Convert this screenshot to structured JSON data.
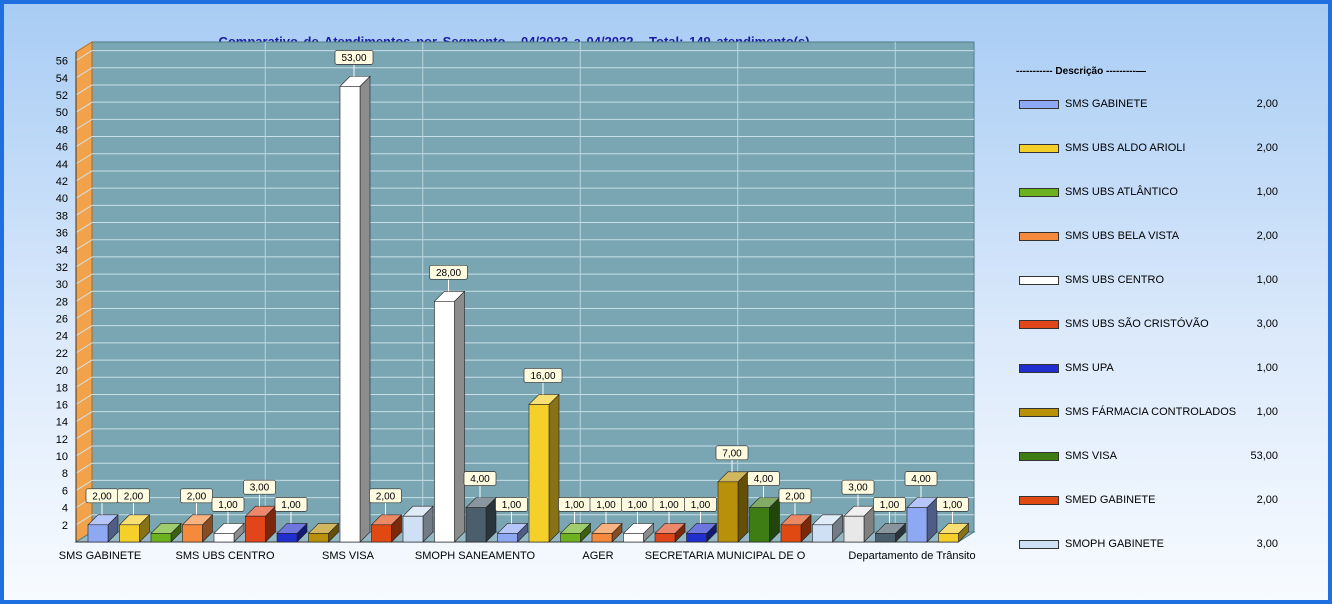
{
  "title": "Comparativo de Atendimentos por Segmento - 04/2022 a 04/2022 - Total: 149 atendimento(s)",
  "legend": {
    "header": "----------- Descrição ---------—"
  },
  "chart_data": {
    "type": "bar",
    "title": "Comparativo de Atendimentos por Segmento - 04/2022 a 04/2022 - Total: 149 atendimento(s)",
    "ylim": [
      0,
      57
    ],
    "yticks": [
      2,
      4,
      6,
      8,
      10,
      12,
      14,
      16,
      18,
      20,
      22,
      24,
      26,
      28,
      30,
      32,
      34,
      36,
      38,
      40,
      42,
      44,
      46,
      48,
      50,
      52,
      54,
      56
    ],
    "grid": true,
    "legend_position": "right",
    "x_axis_labels": [
      "SMS GABINETE",
      "SMS UBS CENTRO",
      "SMS VISA",
      "SMOPH SANEAMENTO",
      "AGER",
      "SECRETARIA MUNICIPAL DE O",
      "Departamento de Trânsito"
    ],
    "series": [
      {
        "name": "SMS GABINETE",
        "value": 2,
        "label": "2,00",
        "color": "#8ea8f4"
      },
      {
        "name": "SMS UBS ALDO ARIOLI",
        "value": 2,
        "label": "2,00",
        "color": "#f5cf2a"
      },
      {
        "name": "SMS UBS ATLÂNTICO",
        "value": 1,
        "label": "1,00",
        "color": "#6cb21e"
      },
      {
        "name": "SMS UBS BELA VISTA",
        "value": 2,
        "label": "2,00",
        "color": "#f58a3c"
      },
      {
        "name": "SMS UBS CENTRO",
        "value": 1,
        "label": "1,00",
        "color": "#ffffff"
      },
      {
        "name": "SMS UBS SÃO CRISTÓVÃO",
        "value": 3,
        "label": "3,00",
        "color": "#e0461a"
      },
      {
        "name": "SMS UPA",
        "value": 1,
        "label": "1,00",
        "color": "#1f2ecc"
      },
      {
        "name": "SMS FÁRMACIA CONTROLADOS",
        "value": 1,
        "label": "1,00",
        "color": "#b8900a"
      },
      {
        "name": "SMS VISA",
        "value": 53,
        "label": "53,00",
        "color": "#3e7d14"
      },
      {
        "name": "SMED GABINETE",
        "value": 2,
        "label": "2,00",
        "color": "#e04a12"
      },
      {
        "name": "SMOPH GABINETE",
        "value": 3,
        "label": "3,00",
        "color": "#cfe0f4"
      }
    ],
    "bars": [
      {
        "value": 2,
        "label": "2,00",
        "color": "#8ea8f4"
      },
      {
        "value": 2,
        "label": "2,00",
        "color": "#f5cf2a"
      },
      {
        "value": 1,
        "label": "",
        "color": "#6cb21e"
      },
      {
        "value": 2,
        "label": "2,00",
        "color": "#f58a3c"
      },
      {
        "value": 1,
        "label": "1,00",
        "color": "#ffffff"
      },
      {
        "value": 3,
        "label": "3,00",
        "color": "#e0461a"
      },
      {
        "value": 1,
        "label": "1,00",
        "color": "#1f2ecc"
      },
      {
        "value": 1,
        "label": "",
        "color": "#b8900a"
      },
      {
        "value": 53,
        "label": "53,00",
        "color": "#ffffff"
      },
      {
        "value": 2,
        "label": "2,00",
        "color": "#e04a12"
      },
      {
        "value": 3,
        "label": "",
        "color": "#cfe0f4"
      },
      {
        "value": 28,
        "label": "28,00",
        "color": "#ffffff"
      },
      {
        "value": 4,
        "label": "4,00",
        "color": "#4a5e6c"
      },
      {
        "value": 1,
        "label": "1,00",
        "color": "#8ea8f4"
      },
      {
        "value": 16,
        "label": "16,00",
        "color": "#f5cf2a"
      },
      {
        "value": 1,
        "label": "1,00",
        "color": "#6cb21e"
      },
      {
        "value": 1,
        "label": "1,00",
        "color": "#f58a3c"
      },
      {
        "value": 1,
        "label": "1,00",
        "color": "#ffffff"
      },
      {
        "value": 1,
        "label": "1,00",
        "color": "#e0461a"
      },
      {
        "value": 1,
        "label": "1,00",
        "color": "#1f2ecc"
      },
      {
        "value": 7,
        "label": "7,00",
        "color": "#b8900a"
      },
      {
        "value": 4,
        "label": "4,00",
        "color": "#3e7d14"
      },
      {
        "value": 2,
        "label": "2,00",
        "color": "#e04a12"
      },
      {
        "value": 2,
        "label": "",
        "color": "#cfe0f4"
      },
      {
        "value": 3,
        "label": "3,00",
        "color": "#e8e8e8"
      },
      {
        "value": 1,
        "label": "1,00",
        "color": "#4a5e6c"
      },
      {
        "value": 4,
        "label": "4,00",
        "color": "#8ea8f4"
      },
      {
        "value": 1,
        "label": "1,00",
        "color": "#f5cf2a"
      }
    ]
  }
}
